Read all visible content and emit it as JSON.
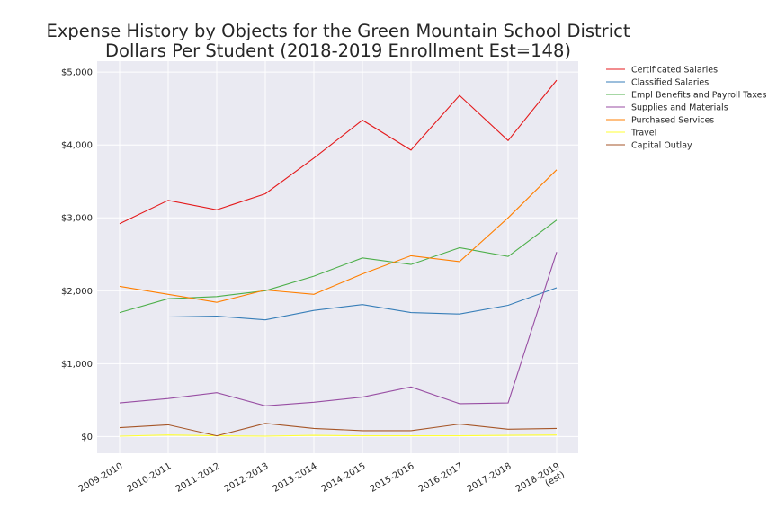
{
  "chart_data": {
    "type": "line",
    "title": [
      "Expense History by Objects for the Green Mountain School District",
      "Dollars Per Student (2018-2019 Enrollment Est=148)"
    ],
    "xlabel": "",
    "ylabel": "",
    "categories": [
      [
        "2009-2010"
      ],
      [
        "2010-2011"
      ],
      [
        "2011-2012"
      ],
      [
        "2012-2013"
      ],
      [
        "2013-2014"
      ],
      [
        "2014-2015"
      ],
      [
        "2015-2016"
      ],
      [
        "2016-2017"
      ],
      [
        "2017-2018"
      ],
      [
        "2018-2019",
        "(est)"
      ]
    ],
    "y_ticks": [
      "$0",
      "$1,000",
      "$2,000",
      "$3,000",
      "$4,000",
      "$5,000"
    ],
    "ylim": [
      -230,
      5150
    ],
    "grid": true,
    "legend_position": "right-outside-top",
    "series": [
      {
        "name": "Certificated Salaries",
        "color": "#e41a1c",
        "values": [
          2920,
          3240,
          3110,
          3330,
          3820,
          4340,
          3930,
          4680,
          4060,
          4890
        ]
      },
      {
        "name": "Classified Salaries",
        "color": "#377eb8",
        "values": [
          1640,
          1640,
          1650,
          1600,
          1730,
          1810,
          1700,
          1680,
          1800,
          2040
        ]
      },
      {
        "name": "Empl Benefits and Payroll Taxes",
        "color": "#4daf4a",
        "values": [
          1700,
          1890,
          1920,
          2000,
          2200,
          2450,
          2360,
          2590,
          2470,
          2970
        ]
      },
      {
        "name": "Supplies and Materials",
        "color": "#984ea3",
        "values": [
          460,
          520,
          600,
          420,
          470,
          540,
          680,
          450,
          460,
          2530
        ]
      },
      {
        "name": "Purchased Services",
        "color": "#ff7f00",
        "values": [
          2060,
          1950,
          1840,
          2010,
          1950,
          2230,
          2480,
          2400,
          3000,
          3660
        ]
      },
      {
        "name": "Travel",
        "color": "#ffff33",
        "values": [
          5,
          20,
          10,
          5,
          15,
          10,
          10,
          10,
          15,
          20
        ]
      },
      {
        "name": "Capital Outlay",
        "color": "#a65628",
        "values": [
          120,
          160,
          10,
          180,
          110,
          80,
          80,
          170,
          100,
          110
        ]
      }
    ]
  }
}
